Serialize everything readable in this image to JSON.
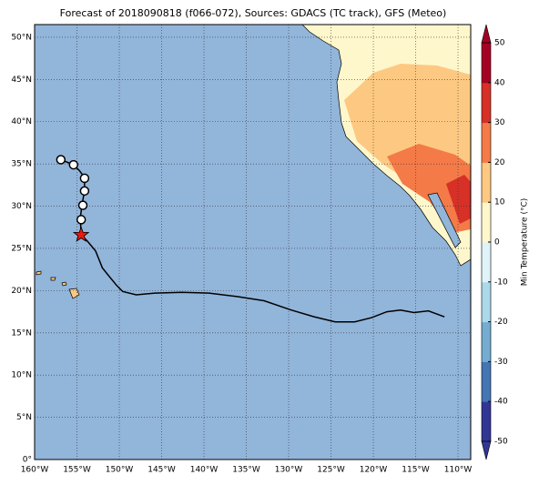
{
  "chart_data": {
    "type": "map",
    "title": "Forecast of 2018090818 (f066-072), Sources: GDACS (TC track), GFS (Meteo)",
    "xlim": [
      -160,
      -108.5
    ],
    "ylim": [
      0,
      51.5
    ],
    "xticks": [
      {
        "value": -160,
        "label": "160°W"
      },
      {
        "value": -155,
        "label": "155°W"
      },
      {
        "value": -150,
        "label": "150°W"
      },
      {
        "value": -145,
        "label": "145°W"
      },
      {
        "value": -140,
        "label": "140°W"
      },
      {
        "value": -135,
        "label": "135°W"
      },
      {
        "value": -130,
        "label": "130°W"
      },
      {
        "value": -125,
        "label": "125°W"
      },
      {
        "value": -120,
        "label": "120°W"
      },
      {
        "value": -115,
        "label": "115°W"
      },
      {
        "value": -110,
        "label": "110°W"
      }
    ],
    "yticks": [
      {
        "value": 0,
        "label": "0°"
      },
      {
        "value": 5,
        "label": "5°N"
      },
      {
        "value": 10,
        "label": "10°N"
      },
      {
        "value": 15,
        "label": "15°N"
      },
      {
        "value": 20,
        "label": "20°N"
      },
      {
        "value": 25,
        "label": "25°N"
      },
      {
        "value": 30,
        "label": "30°N"
      },
      {
        "value": 35,
        "label": "35°N"
      },
      {
        "value": 40,
        "label": "40°N"
      },
      {
        "value": 45,
        "label": "45°N"
      },
      {
        "value": 50,
        "label": "50°N"
      }
    ],
    "grid": true,
    "series": [
      {
        "color": "#000000",
        "x": [
          -111.6,
          -113.5,
          -115.2,
          -116.8,
          -118.4,
          -120.2,
          -122.2,
          -124.5,
          -127,
          -129.7,
          -132.9,
          -136.1,
          -139.4,
          -142.6,
          -145.8,
          -148,
          -149.6,
          -150.3,
          -151.2,
          -152,
          -152.8,
          -153.8,
          -154.5,
          -154.6,
          -154.4,
          -154.1,
          -154.1,
          -154.7,
          -155.4,
          -156.9
        ],
        "values": [
          16.9,
          17.6,
          17.4,
          17.7,
          17.5,
          16.8,
          16.3,
          16.3,
          16.9,
          17.7,
          18.8,
          19.3,
          19.7,
          19.8,
          19.7,
          19.5,
          19.9,
          20.6,
          21.7,
          22.7,
          24.7,
          25.9,
          26.6,
          28.6,
          30.2,
          31.8,
          33.4,
          34.2,
          34.9,
          35.5
        ]
      }
    ],
    "markers": {
      "x": [
        -156.9,
        -155.4,
        -154.1,
        -154.1,
        -154.3,
        -154.5
      ],
      "values": [
        35.5,
        34.9,
        33.3,
        31.8,
        30.1,
        28.4
      ]
    },
    "current_position": {
      "x": -154.5,
      "values": [
        26.6
      ],
      "color": "#e8190f"
    },
    "colorbar": {
      "label": "Min Temperature (°C)",
      "lim": [
        -50,
        50
      ],
      "ticks": [
        -50,
        -40,
        -30,
        -20,
        -10,
        0,
        10,
        20,
        30,
        40,
        50
      ],
      "colors": [
        "#313695",
        "#4575b4",
        "#74add1",
        "#abd9e9",
        "#e0f3f8",
        "#fef7cc",
        "#fdc982",
        "#f47a48",
        "#d73027",
        "#a50026"
      ]
    }
  }
}
